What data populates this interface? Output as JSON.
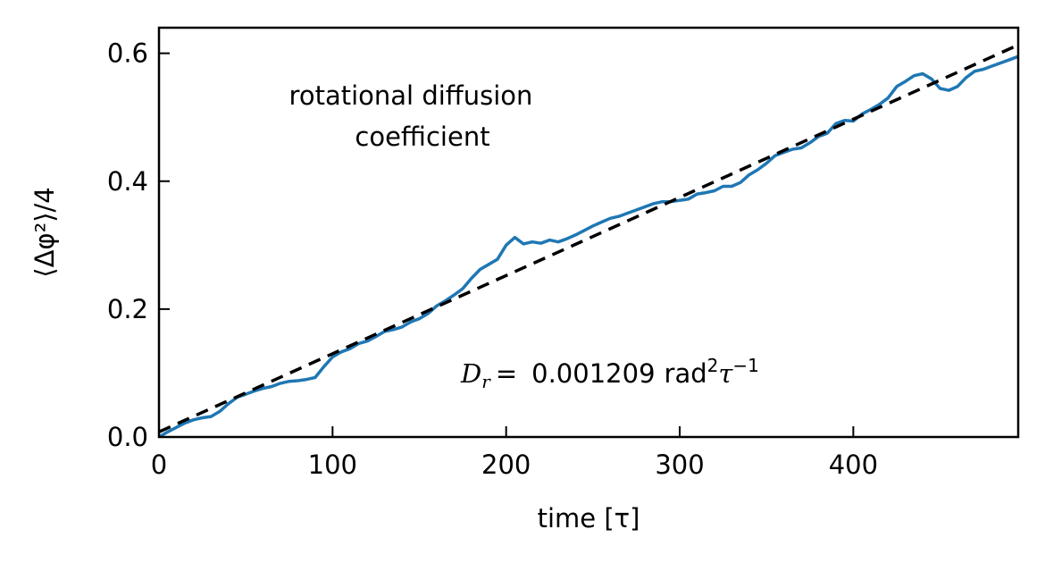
{
  "chart_data": {
    "type": "line",
    "title": "",
    "xlabel": "time [τ]",
    "ylabel": "⟨Δφ²⟩/4",
    "xlim": [
      0,
      495
    ],
    "ylim": [
      0,
      0.64
    ],
    "x_ticks": [
      0,
      100,
      200,
      300,
      400
    ],
    "x_tick_labels": [
      "0",
      "100",
      "200",
      "300",
      "400"
    ],
    "y_ticks": [
      0,
      0.2,
      0.4,
      0.6
    ],
    "y_tick_labels": [
      "0.0",
      "0.2",
      "0.4",
      "0.6"
    ],
    "grid": false,
    "ticks_direction": "in",
    "annotation_text": [
      "rotational diffusion",
      "coefficient"
    ],
    "dr_annotation": {
      "symbol": "D",
      "subscript": "r",
      "equals": "=",
      "value": "0.001209",
      "unit": "rad",
      "unit_exp": "2",
      "time_symbol": "τ",
      "time_exp": "−1"
    },
    "series": [
      {
        "style": "solid",
        "color": "#1f77b4",
        "x": [
          0,
          5,
          10,
          15,
          20,
          25,
          30,
          35,
          40,
          45,
          50,
          55,
          60,
          65,
          70,
          75,
          80,
          85,
          90,
          95,
          100,
          105,
          110,
          115,
          120,
          125,
          130,
          135,
          140,
          145,
          150,
          155,
          160,
          165,
          170,
          175,
          180,
          185,
          190,
          195,
          200,
          205,
          210,
          215,
          220,
          225,
          230,
          235,
          240,
          245,
          250,
          255,
          260,
          265,
          270,
          275,
          280,
          285,
          290,
          295,
          300,
          305,
          310,
          315,
          320,
          325,
          330,
          335,
          340,
          345,
          350,
          355,
          360,
          365,
          370,
          375,
          380,
          385,
          390,
          395,
          400,
          405,
          410,
          415,
          420,
          425,
          430,
          435,
          440,
          445,
          450,
          455,
          460,
          465,
          470,
          475,
          480,
          485,
          490,
          495
        ],
        "y": [
          0.0,
          0.008,
          0.015,
          0.022,
          0.027,
          0.03,
          0.032,
          0.04,
          0.052,
          0.062,
          0.067,
          0.072,
          0.076,
          0.079,
          0.084,
          0.087,
          0.088,
          0.09,
          0.093,
          0.11,
          0.125,
          0.133,
          0.138,
          0.146,
          0.15,
          0.157,
          0.165,
          0.168,
          0.172,
          0.18,
          0.185,
          0.193,
          0.205,
          0.213,
          0.222,
          0.232,
          0.248,
          0.262,
          0.27,
          0.278,
          0.3,
          0.312,
          0.302,
          0.305,
          0.303,
          0.308,
          0.305,
          0.31,
          0.316,
          0.323,
          0.33,
          0.336,
          0.342,
          0.345,
          0.35,
          0.355,
          0.36,
          0.365,
          0.368,
          0.368,
          0.37,
          0.372,
          0.38,
          0.382,
          0.385,
          0.392,
          0.392,
          0.398,
          0.41,
          0.418,
          0.428,
          0.44,
          0.445,
          0.45,
          0.452,
          0.46,
          0.47,
          0.475,
          0.49,
          0.495,
          0.494,
          0.505,
          0.512,
          0.52,
          0.53,
          0.548,
          0.556,
          0.565,
          0.568,
          0.56,
          0.545,
          0.542,
          0.548,
          0.562,
          0.572,
          0.575,
          0.58,
          0.585,
          0.59,
          0.595
        ]
      },
      {
        "style": "dashed",
        "color": "#000000",
        "x": [
          0,
          495
        ],
        "y": [
          0.008,
          0.613
        ]
      }
    ]
  }
}
